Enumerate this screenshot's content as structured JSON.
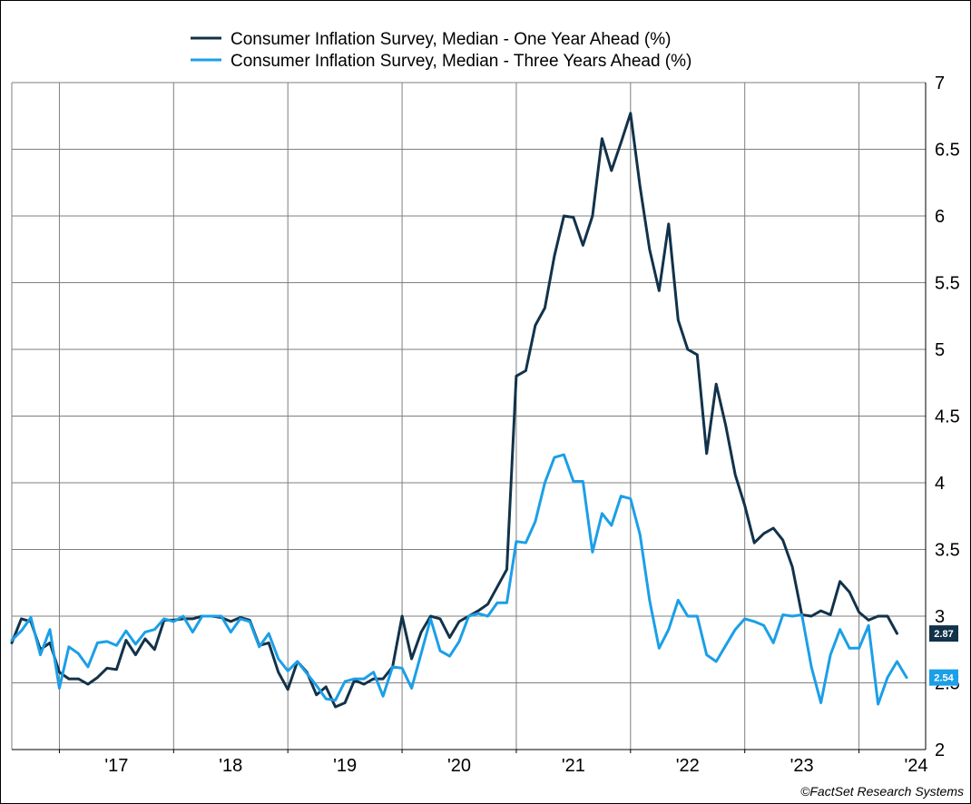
{
  "source": "©FactSet Research Systems",
  "colors": {
    "series_1": "#12324a",
    "series_2": "#1b9fe8",
    "grid": "#7f7f7f"
  },
  "chart_data": {
    "type": "line",
    "title": "",
    "xlabel": "",
    "ylabel": "",
    "ylim": [
      2,
      7
    ],
    "y_axis_position": "right",
    "y_ticks": [
      2,
      2.5,
      3,
      3.5,
      4,
      4.5,
      5,
      5.5,
      6,
      6.5,
      7
    ],
    "y_tick_labels": [
      "2",
      "2.5",
      "3",
      "3.5",
      "4",
      "4.5",
      "5",
      "5.5",
      "6",
      "6.5",
      "7"
    ],
    "x_range": [
      "2016-08",
      "2024-08"
    ],
    "x_tick_labels": [
      "'17",
      "'18",
      "'19",
      "'20",
      "'21",
      "'22",
      "'23",
      "'24"
    ],
    "grid": true,
    "legend_position": "top",
    "start_month": "2016-08",
    "series": [
      {
        "name": "Consumer Inflation Survey, Median - One Year Ahead (%)",
        "last_value_label": "2.87",
        "values": [
          2.8,
          2.98,
          2.96,
          2.75,
          2.8,
          2.58,
          2.53,
          2.53,
          2.49,
          2.54,
          2.61,
          2.6,
          2.82,
          2.71,
          2.83,
          2.75,
          2.97,
          2.97,
          2.98,
          2.98,
          3.0,
          3.0,
          2.99,
          2.96,
          2.99,
          2.97,
          2.78,
          2.8,
          2.58,
          2.45,
          2.66,
          2.58,
          2.41,
          2.47,
          2.32,
          2.35,
          2.52,
          2.49,
          2.53,
          2.53,
          2.62,
          3.0,
          2.68,
          2.88,
          3.0,
          2.98,
          2.84,
          2.96,
          3.0,
          3.04,
          3.09,
          3.22,
          3.35,
          4.8,
          4.84,
          5.18,
          5.31,
          5.7,
          6.0,
          5.99,
          5.78,
          6.0,
          6.58,
          6.34,
          6.55,
          6.77,
          6.22,
          5.75,
          5.44,
          5.94,
          5.22,
          5.0,
          4.96,
          4.22,
          4.74,
          4.43,
          4.06,
          3.83,
          3.55,
          3.62,
          3.66,
          3.57,
          3.37,
          3.01,
          3.0,
          3.04,
          3.01,
          3.26,
          3.18,
          3.03,
          2.97,
          3.0,
          3.0,
          2.87
        ]
      },
      {
        "name": "Consumer Inflation Survey, Median - Three Years Ahead (%)",
        "last_value_label": "2.54",
        "values": [
          2.82,
          2.89,
          2.99,
          2.71,
          2.9,
          2.46,
          2.77,
          2.72,
          2.62,
          2.8,
          2.81,
          2.78,
          2.89,
          2.79,
          2.88,
          2.9,
          2.98,
          2.96,
          3.0,
          2.88,
          3.0,
          3.0,
          3.0,
          2.88,
          2.98,
          2.96,
          2.77,
          2.87,
          2.68,
          2.59,
          2.66,
          2.57,
          2.48,
          2.38,
          2.37,
          2.51,
          2.53,
          2.53,
          2.58,
          2.4,
          2.62,
          2.61,
          2.46,
          2.72,
          2.98,
          2.74,
          2.7,
          2.81,
          3.0,
          3.02,
          3.0,
          3.1,
          3.1,
          3.56,
          3.55,
          3.71,
          4.0,
          4.19,
          4.21,
          4.01,
          4.01,
          3.48,
          3.77,
          3.68,
          3.9,
          3.88,
          3.61,
          3.12,
          2.76,
          2.9,
          3.12,
          3.0,
          3.0,
          2.71,
          2.66,
          2.78,
          2.9,
          2.98,
          2.96,
          2.93,
          2.8,
          3.01,
          3.0,
          3.01,
          2.62,
          2.35,
          2.71,
          2.9,
          2.76,
          2.76,
          2.93,
          2.34,
          2.54,
          2.66,
          2.54
        ]
      }
    ]
  }
}
